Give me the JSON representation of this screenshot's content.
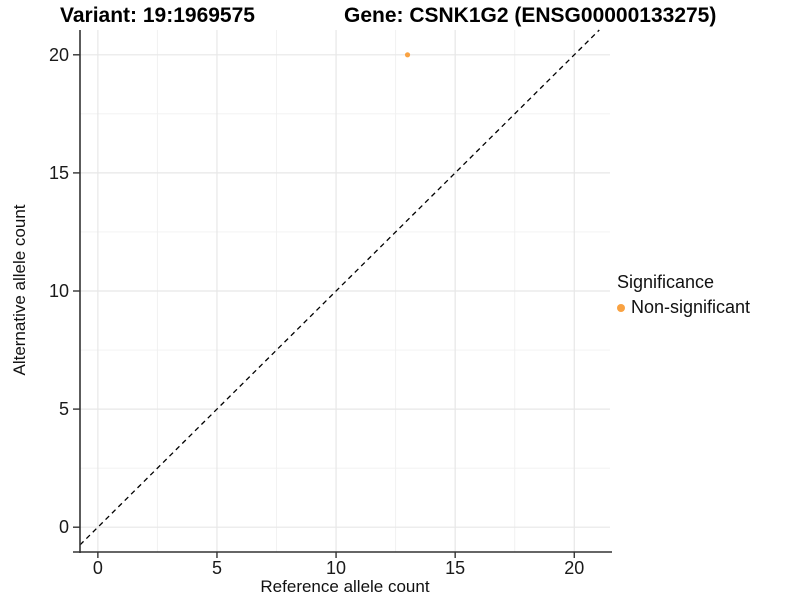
{
  "titles": {
    "variant": "Variant: 19:1969575",
    "gene": "Gene: CSNK1G2 (ENSG00000133275)"
  },
  "chart_data": {
    "type": "scatter",
    "title": "Variant: 19:1969575 / Gene: CSNK1G2 (ENSG00000133275)",
    "xlabel": "Reference allele count",
    "ylabel": "Alternative allele count",
    "xlim": [
      -0.75,
      21.5
    ],
    "ylim": [
      -1.05,
      21.05
    ],
    "x_ticks": [
      0,
      5,
      10,
      15,
      20
    ],
    "y_ticks": [
      0,
      5,
      10,
      15,
      20
    ],
    "minor_ticks": [
      2.5,
      7.5,
      12.5,
      17.5
    ],
    "grid": true,
    "points": [
      {
        "x": 13,
        "y": 20,
        "series": "Non-significant"
      }
    ],
    "reference_line": {
      "type": "identity",
      "style": "dashed",
      "color": "#000000"
    },
    "legend": {
      "title": "Significance",
      "position": "right",
      "items": [
        {
          "label": "Non-significant",
          "color": "#F9A242"
        }
      ]
    },
    "colors": {
      "point": "#F9A242",
      "grid_major": "#E7E7E7",
      "grid_minor": "#F0F0F0",
      "axis": "#333333",
      "tick_text": "#1A1A1A"
    }
  }
}
